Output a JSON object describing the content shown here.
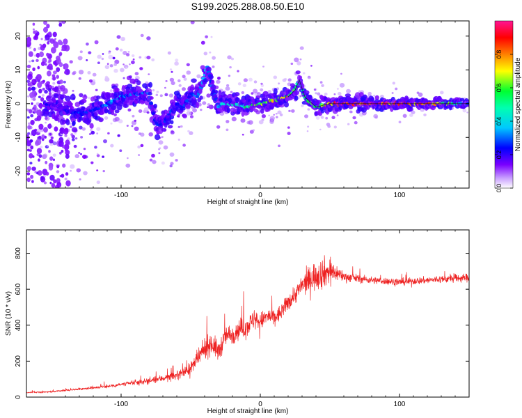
{
  "title": "S199.2025.288.08.50.E10",
  "colors": {
    "snr_line": "#ee2222",
    "ridge": "#0a0a0a",
    "colormap": [
      "#ffffff",
      "#7a00ff",
      "#0000ff",
      "#00e0ff",
      "#00ff40",
      "#ffff00",
      "#ff8000",
      "#ff0000",
      "#ff1493"
    ]
  },
  "chart_data": [
    {
      "type": "heatmap",
      "title": "S199.2025.288.08.50.E10",
      "xlabel": "Height of straight line (km)",
      "ylabel": "Frequency (Hz)",
      "xlim": [
        -168,
        150
      ],
      "ylim": [
        -25,
        24.5
      ],
      "xticks": [
        -100,
        0,
        100
      ],
      "yticks": [
        -20,
        -10,
        0,
        10,
        20
      ],
      "grid": false,
      "colorbar": {
        "label": "Normalized spectral amplitude",
        "range": [
          0,
          1
        ],
        "ticks": [
          0.0,
          0.2,
          0.4,
          0.6,
          0.8
        ]
      },
      "ridge": {
        "x": [
          -150,
          -140,
          -130,
          -120,
          -110,
          -100,
          -90,
          -80,
          -75,
          -70,
          -65,
          -60,
          -55,
          -50,
          -45,
          -40,
          -38,
          -35,
          -30,
          -25,
          -20,
          -10,
          0,
          10,
          20,
          25,
          28,
          32,
          40,
          50,
          60,
          80,
          100,
          120,
          150
        ],
        "y": [
          0,
          -2,
          -3,
          -2,
          0,
          2,
          3,
          3,
          -6,
          -6,
          -3,
          0,
          -1,
          3,
          2,
          8,
          11,
          6,
          -1,
          0,
          0,
          -1,
          0,
          1,
          2,
          4,
          7,
          2,
          -1,
          0,
          0,
          0,
          0,
          0,
          0
        ],
        "amplitude": [
          0.2,
          0.2,
          0.25,
          0.25,
          0.3,
          0.3,
          0.3,
          0.3,
          0.25,
          0.25,
          0.25,
          0.25,
          0.25,
          0.3,
          0.3,
          0.35,
          0.35,
          0.3,
          0.35,
          0.4,
          0.45,
          0.5,
          0.6,
          0.7,
          0.75,
          0.5,
          0.4,
          0.5,
          0.6,
          0.8,
          0.95,
          0.95,
          0.9,
          0.85,
          0.3
        ]
      }
    },
    {
      "type": "line",
      "xlabel": "Height of straight line (km)",
      "ylabel": "SNR (10 * v/v)",
      "xlim": [
        -168,
        150
      ],
      "ylim": [
        0,
        930
      ],
      "xticks": [
        -100,
        0,
        100
      ],
      "yticks": [
        0,
        200,
        400,
        600,
        800
      ],
      "grid": false,
      "series": [
        {
          "name": "SNR",
          "color": "#ee2222",
          "x": [
            -168,
            -150,
            -130,
            -110,
            -100,
            -90,
            -80,
            -70,
            -60,
            -50,
            -45,
            -40,
            -35,
            -30,
            -25,
            -20,
            -15,
            -10,
            -5,
            0,
            5,
            10,
            15,
            20,
            25,
            30,
            35,
            40,
            45,
            50,
            55,
            60,
            70,
            80,
            100,
            120,
            150
          ],
          "values": [
            25,
            30,
            45,
            60,
            70,
            80,
            90,
            105,
            120,
            160,
            210,
            270,
            300,
            250,
            340,
            350,
            380,
            390,
            430,
            420,
            450,
            440,
            470,
            530,
            570,
            620,
            650,
            680,
            690,
            700,
            690,
            670,
            660,
            650,
            640,
            650,
            665
          ],
          "noise": [
            6,
            8,
            10,
            15,
            20,
            25,
            30,
            35,
            40,
            60,
            80,
            100,
            110,
            100,
            100,
            100,
            100,
            110,
            90,
            90,
            80,
            90,
            80,
            80,
            90,
            100,
            130,
            150,
            160,
            120,
            80,
            50,
            40,
            35,
            35,
            35,
            40
          ]
        }
      ]
    }
  ]
}
